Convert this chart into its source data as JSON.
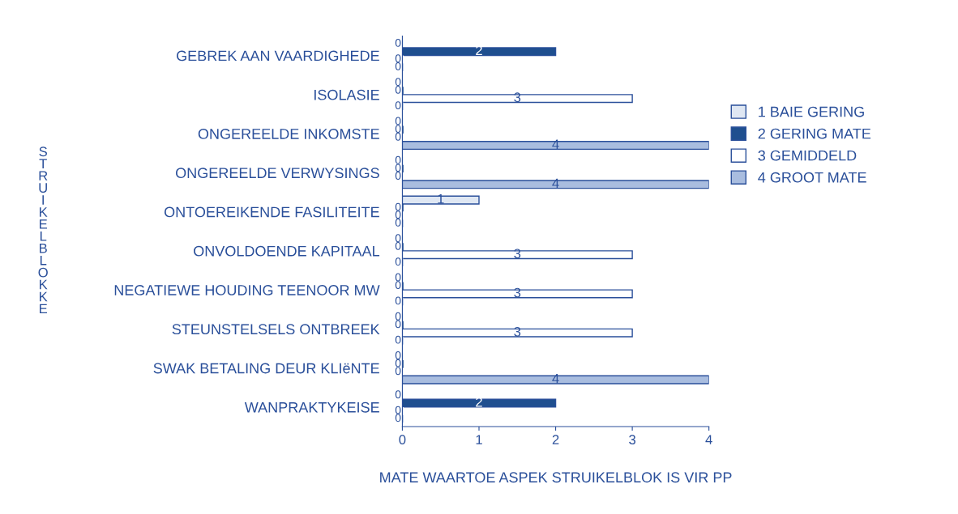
{
  "chart_data": {
    "type": "bar",
    "orientation": "horizontal",
    "ylabel": "STRUIKELBLOKKE",
    "xlabel": "MATE WAARTOE ASPEK STRUIKELBLOK IS VIR PP",
    "categories": [
      "GEBREK AAN VAARDIGHEDE",
      "ISOLASIE",
      "ONGEREELDE INKOMSTE",
      "ONGEREELDE VERWYSINGS",
      "ONTOEREIKENDE FASILITEITE",
      "ONVOLDOENDE KAPITAAL",
      "NEGATIEWE HOUDING TEENOOR MW",
      "STEUNSTELSELS ONTBREEK",
      "SWAK BETALING DEUR KLIëNTE",
      "WANPRAKTYKEISE"
    ],
    "series": [
      {
        "name": "1 BAIE GERING",
        "color": "#dfe7f3",
        "values": [
          0,
          0,
          0,
          0,
          1,
          0,
          0,
          0,
          0,
          0
        ]
      },
      {
        "name": "2 GERING MATE",
        "color": "#1f4f8f",
        "values": [
          2,
          0,
          0,
          0,
          0,
          0,
          0,
          0,
          0,
          2
        ]
      },
      {
        "name": "3 GEMIDDELD",
        "color": "#ffffff",
        "values": [
          0,
          3,
          0,
          0,
          0,
          3,
          3,
          3,
          0,
          0
        ]
      },
      {
        "name": "4 GROOT MATE",
        "color": "#a9bddf",
        "values": [
          0,
          0,
          4,
          4,
          0,
          0,
          0,
          0,
          4,
          0
        ]
      }
    ],
    "xlim": [
      0,
      4
    ],
    "xticks": [
      0,
      1,
      2,
      3,
      4
    ],
    "grid": false,
    "legend": "right",
    "data_labels": true
  }
}
